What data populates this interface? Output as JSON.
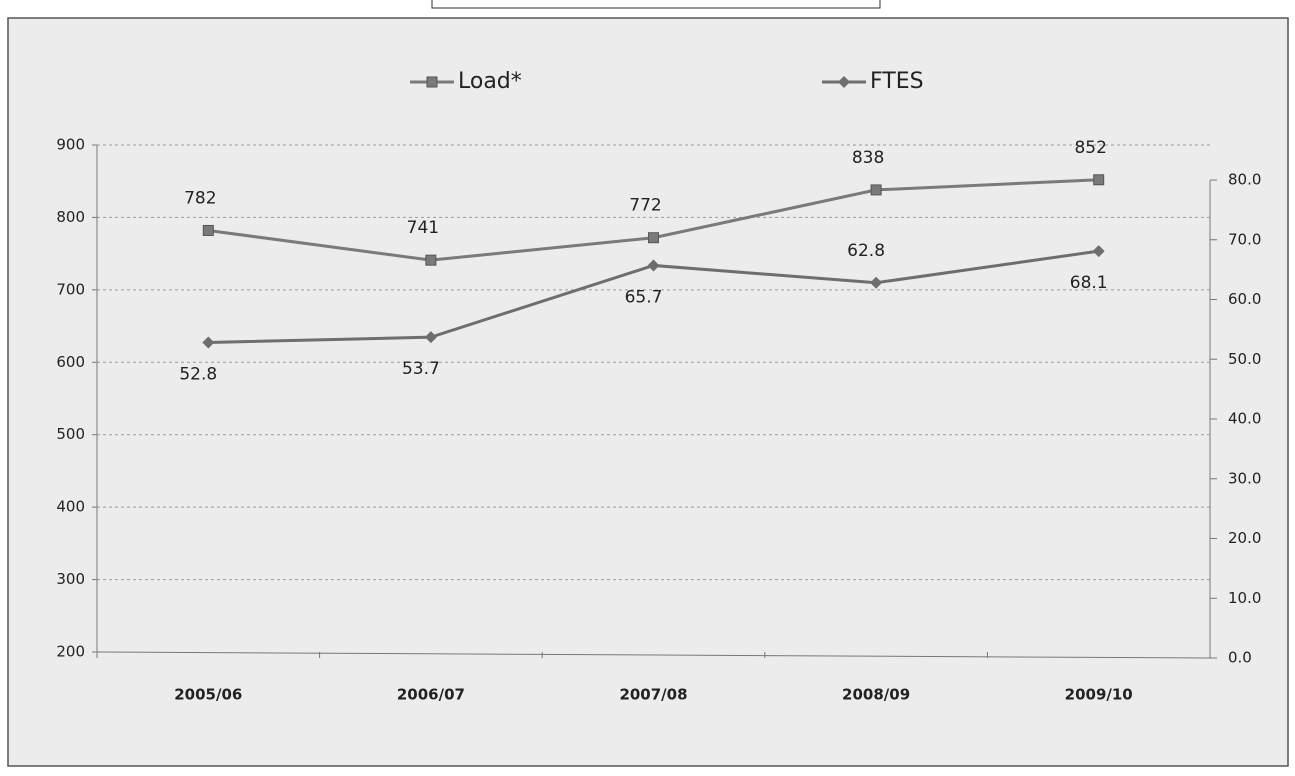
{
  "chart_data": {
    "type": "line",
    "categories": [
      "2005/06",
      "2006/07",
      "2007/08",
      "2008/09",
      "2009/10"
    ],
    "series": [
      {
        "name": "Load*",
        "color": "#7a7a7a",
        "marker": "square",
        "values": [
          782,
          741,
          772,
          838,
          852
        ]
      },
      {
        "name": "FTES",
        "color": "#6e6e6e",
        "marker": "diamond",
        "axis": "y2",
        "values": [
          52.8,
          53.7,
          65.7,
          62.8,
          68.1
        ]
      }
    ],
    "ylim": [
      200,
      900
    ],
    "yticks": [
      200,
      300,
      400,
      500,
      600,
      700,
      800,
      900
    ],
    "y2lim": [
      0,
      80
    ],
    "y2ticks": [
      {
        "value": 0,
        "label": "0.0"
      },
      {
        "value": 10,
        "label": "10.0"
      },
      {
        "value": 20,
        "label": "20.0"
      },
      {
        "value": 30,
        "label": "30.0"
      },
      {
        "value": 40,
        "label": "40.0"
      },
      {
        "value": 50,
        "label": "50.0"
      },
      {
        "value": 60,
        "label": "60.0"
      },
      {
        "value": 70,
        "label": "70.0"
      },
      {
        "value": 80,
        "label": "80.0"
      }
    ],
    "grid": true,
    "legend": "top"
  }
}
